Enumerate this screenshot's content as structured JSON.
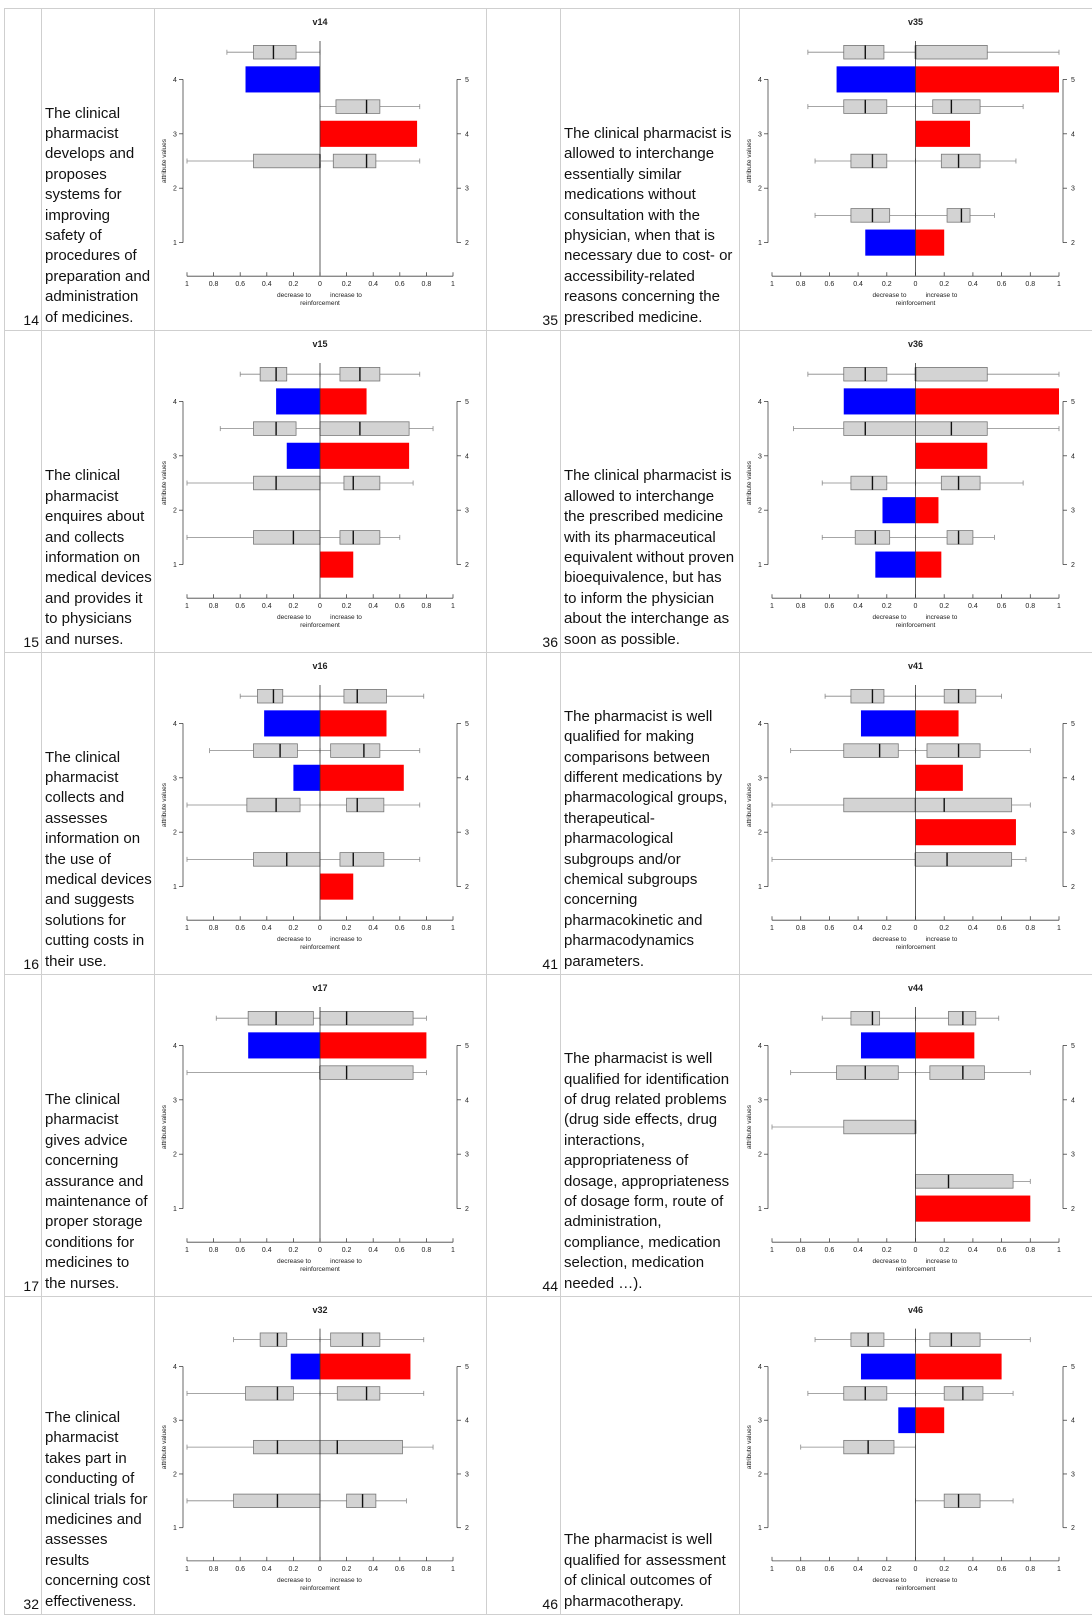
{
  "colors": {
    "decrease": "#0000ff",
    "increase": "#ff0000",
    "box": "#d3d3d3",
    "box_stroke": "#777777",
    "axis": "#444444"
  },
  "chart_labels": {
    "x_ticks": [
      "1",
      "0.8",
      "0.6",
      "0.4",
      "0.2",
      "0",
      "0.2",
      "0.4",
      "0.6",
      "0.8",
      "1"
    ],
    "left_ticks": [
      "1",
      "2",
      "3",
      "4"
    ],
    "right_ticks": [
      "2",
      "3",
      "4",
      "5"
    ],
    "ylabel": "attribute values",
    "xlabel_left": "decrease to",
    "xlabel_right": "increase to",
    "xlabel_bottom": "reinforcement"
  },
  "rows": [
    {
      "left": {
        "num": "14",
        "text": "The clinical pharmacist develops and proposes systems for improving safety of procedures of preparation and administration of medicines."
      },
      "right": {
        "num": "35",
        "text": "The clinical pharmacist is allowed to interchange essentially similar medications without consultation with the physician, when that is necessary due to cost- or accessibility-related reasons concerning the prescribed medicine."
      }
    },
    {
      "left": {
        "num": "15",
        "text": "The clinical pharmacist enquires about and collects information on medical devices and provides it to physicians and nurses."
      },
      "right": {
        "num": "36",
        "text": "The clinical pharmacist is allowed to interchange the prescribed medicine with its pharmaceutical equivalent without proven bioequivalence, but has to inform the physician about the interchange as soon as possible."
      }
    },
    {
      "left": {
        "num": "16",
        "text": "The clinical pharmacist collects and assesses information on the use of medical devices and suggests solutions for cutting costs in their use."
      },
      "right": {
        "num": "41",
        "text": "The pharmacist is well qualified for making comparisons between different medications by pharmacological groups, therapeutical-pharmacological subgroups and/or chemical subgroups concerning pharmacokinetic and pharmacodynamics parameters."
      }
    },
    {
      "left": {
        "num": "17",
        "text": "The clinical pharmacist gives advice concerning assurance and maintenance of proper storage conditions for medicines to the nurses."
      },
      "right": {
        "num": "44",
        "text": "The pharmacist is well qualified for identification of drug related problems (drug side effects, drug interactions, appropriateness of dosage, appropriateness of dosage form, route of administration, compliance, medication selection, medication needed …)."
      }
    },
    {
      "left": {
        "num": "32",
        "text": "The clinical pharmacist takes part in conducting of clinical trials for medicines and assesses results concerning cost effectiveness."
      },
      "right": {
        "num": "46",
        "text": "The pharmacist is well qualified for assessment of clinical outcomes of pharmacotherapy."
      }
    }
  ],
  "chart_data": [
    {
      "type": "bar",
      "title": "v14",
      "xlim": [
        -1,
        1
      ],
      "ylim": [
        1,
        4
      ],
      "y_right_ticks": [
        2,
        3,
        4,
        5
      ],
      "bars": [
        {
          "y": 4,
          "decrease": 0.56,
          "increase": 0
        },
        {
          "y": 3,
          "decrease": 0,
          "increase": 0.73
        }
      ],
      "boxplots": [
        {
          "y": 4.5,
          "whisker_low": -0.7,
          "q1": -0.5,
          "median": -0.35,
          "q3": -0.18,
          "whisker_high": 0
        },
        {
          "y": 3.5,
          "whisker_low": 0,
          "q1": 0.12,
          "median": 0.35,
          "q3": 0.45,
          "whisker_high": 0.75
        },
        {
          "y": 2.5,
          "whisker_low": -1.0,
          "q1": -0.5,
          "median": 0,
          "q3": 0,
          "whisker_high": 0
        },
        {
          "y": 2.5,
          "whisker_low": 0,
          "q1": 0.1,
          "median": 0.35,
          "q3": 0.42,
          "whisker_high": 0.75
        }
      ]
    },
    {
      "type": "bar",
      "title": "v35",
      "xlim": [
        -1,
        1
      ],
      "ylim": [
        1,
        4
      ],
      "y_right_ticks": [
        2,
        3,
        4,
        5
      ],
      "bars": [
        {
          "y": 4,
          "decrease": 0.55,
          "increase": 1.0
        },
        {
          "y": 3,
          "decrease": 0,
          "increase": 0.38
        },
        {
          "y": 1,
          "decrease": 0.35,
          "increase": 0.2
        }
      ],
      "boxplots": [
        {
          "y": 4.5,
          "whisker_low": -0.75,
          "q1": -0.5,
          "median": -0.35,
          "q3": -0.22,
          "whisker_high": 0
        },
        {
          "y": 4.5,
          "whisker_low": 0,
          "q1": 0,
          "median": 0,
          "q3": 0.5,
          "whisker_high": 1.0
        },
        {
          "y": 3.5,
          "whisker_low": -0.75,
          "q1": -0.5,
          "median": -0.35,
          "q3": -0.2,
          "whisker_high": 0
        },
        {
          "y": 3.5,
          "whisker_low": 0,
          "q1": 0.12,
          "median": 0.25,
          "q3": 0.45,
          "whisker_high": 0.75
        },
        {
          "y": 2.5,
          "whisker_low": -0.7,
          "q1": -0.45,
          "median": -0.3,
          "q3": -0.2,
          "whisker_high": 0
        },
        {
          "y": 2.5,
          "whisker_low": 0,
          "q1": 0.18,
          "median": 0.3,
          "q3": 0.45,
          "whisker_high": 0.7
        },
        {
          "y": 1.5,
          "whisker_low": -0.7,
          "q1": -0.45,
          "median": -0.3,
          "q3": -0.18,
          "whisker_high": 0
        },
        {
          "y": 1.5,
          "whisker_low": 0,
          "q1": 0.22,
          "median": 0.32,
          "q3": 0.38,
          "whisker_high": 0.55
        }
      ]
    },
    {
      "type": "bar",
      "title": "v15",
      "xlim": [
        -1,
        1
      ],
      "ylim": [
        1,
        4
      ],
      "y_right_ticks": [
        2,
        3,
        4,
        5
      ],
      "bars": [
        {
          "y": 4,
          "decrease": 0.33,
          "increase": 0.35
        },
        {
          "y": 3,
          "decrease": 0.25,
          "increase": 0.67
        },
        {
          "y": 1,
          "decrease": 0,
          "increase": 0.25
        }
      ],
      "boxplots": [
        {
          "y": 4.5,
          "whisker_low": -0.6,
          "q1": -0.45,
          "median": -0.33,
          "q3": -0.25,
          "whisker_high": 0
        },
        {
          "y": 4.5,
          "whisker_low": 0,
          "q1": 0.15,
          "median": 0.3,
          "q3": 0.45,
          "whisker_high": 0.75
        },
        {
          "y": 3.5,
          "whisker_low": -0.75,
          "q1": -0.5,
          "median": -0.33,
          "q3": -0.18,
          "whisker_high": 0
        },
        {
          "y": 3.5,
          "whisker_low": 0,
          "q1": 0,
          "median": 0.3,
          "q3": 0.67,
          "whisker_high": 0.85
        },
        {
          "y": 2.5,
          "whisker_low": -1.0,
          "q1": -0.5,
          "median": -0.33,
          "q3": 0,
          "whisker_high": 0
        },
        {
          "y": 2.5,
          "whisker_low": 0,
          "q1": 0.18,
          "median": 0.25,
          "q3": 0.45,
          "whisker_high": 0.7
        },
        {
          "y": 1.5,
          "whisker_low": -1.0,
          "q1": -0.5,
          "median": -0.2,
          "q3": 0,
          "whisker_high": 0
        },
        {
          "y": 1.5,
          "whisker_low": 0,
          "q1": 0.15,
          "median": 0.25,
          "q3": 0.45,
          "whisker_high": 0.6
        }
      ]
    },
    {
      "type": "bar",
      "title": "v36",
      "xlim": [
        -1,
        1
      ],
      "ylim": [
        1,
        4
      ],
      "y_right_ticks": [
        2,
        3,
        4,
        5
      ],
      "bars": [
        {
          "y": 4,
          "decrease": 0.5,
          "increase": 1.0
        },
        {
          "y": 3,
          "decrease": 0,
          "increase": 0.5
        },
        {
          "y": 2,
          "decrease": 0.23,
          "increase": 0.16
        },
        {
          "y": 1,
          "decrease": 0.28,
          "increase": 0.18
        }
      ],
      "boxplots": [
        {
          "y": 4.5,
          "whisker_low": -0.75,
          "q1": -0.5,
          "median": -0.35,
          "q3": -0.2,
          "whisker_high": 0
        },
        {
          "y": 4.5,
          "whisker_low": 0,
          "q1": 0,
          "median": 0,
          "q3": 0.5,
          "whisker_high": 1.0
        },
        {
          "y": 3.5,
          "whisker_low": -0.85,
          "q1": -0.5,
          "median": -0.35,
          "q3": 0,
          "whisker_high": 0
        },
        {
          "y": 3.5,
          "whisker_low": 0,
          "q1": 0,
          "median": 0.25,
          "q3": 0.5,
          "whisker_high": 1.0
        },
        {
          "y": 2.5,
          "whisker_low": -0.65,
          "q1": -0.45,
          "median": -0.3,
          "q3": -0.2,
          "whisker_high": 0
        },
        {
          "y": 2.5,
          "whisker_low": 0,
          "q1": 0.18,
          "median": 0.3,
          "q3": 0.45,
          "whisker_high": 0.75
        },
        {
          "y": 1.5,
          "whisker_low": -0.65,
          "q1": -0.42,
          "median": -0.28,
          "q3": -0.18,
          "whisker_high": 0
        },
        {
          "y": 1.5,
          "whisker_low": 0,
          "q1": 0.22,
          "median": 0.3,
          "q3": 0.4,
          "whisker_high": 0.55
        }
      ]
    },
    {
      "type": "bar",
      "title": "v16",
      "xlim": [
        -1,
        1
      ],
      "ylim": [
        1,
        4
      ],
      "y_right_ticks": [
        2,
        3,
        4,
        5
      ],
      "bars": [
        {
          "y": 4,
          "decrease": 0.42,
          "increase": 0.5
        },
        {
          "y": 3,
          "decrease": 0.2,
          "increase": 0.63
        },
        {
          "y": 1,
          "decrease": 0,
          "increase": 0.25
        }
      ],
      "boxplots": [
        {
          "y": 4.5,
          "whisker_low": -0.6,
          "q1": -0.47,
          "median": -0.35,
          "q3": -0.28,
          "whisker_high": 0
        },
        {
          "y": 4.5,
          "whisker_low": 0,
          "q1": 0.18,
          "median": 0.28,
          "q3": 0.5,
          "whisker_high": 0.78
        },
        {
          "y": 3.5,
          "whisker_low": -0.83,
          "q1": -0.5,
          "median": -0.3,
          "q3": -0.17,
          "whisker_high": 0
        },
        {
          "y": 3.5,
          "whisker_low": 0,
          "q1": 0.08,
          "median": 0.33,
          "q3": 0.45,
          "whisker_high": 0.75
        },
        {
          "y": 2.5,
          "whisker_low": -1.0,
          "q1": -0.55,
          "median": -0.33,
          "q3": -0.15,
          "whisker_high": 0
        },
        {
          "y": 2.5,
          "whisker_low": 0,
          "q1": 0.2,
          "median": 0.28,
          "q3": 0.48,
          "whisker_high": 0.75
        },
        {
          "y": 1.5,
          "whisker_low": -1.0,
          "q1": -0.5,
          "median": -0.25,
          "q3": 0,
          "whisker_high": 0
        },
        {
          "y": 1.5,
          "whisker_low": 0,
          "q1": 0.15,
          "median": 0.25,
          "q3": 0.48,
          "whisker_high": 0.75
        }
      ]
    },
    {
      "type": "bar",
      "title": "v41",
      "xlim": [
        -1,
        1
      ],
      "ylim": [
        1,
        4
      ],
      "y_right_ticks": [
        2,
        3,
        4,
        5
      ],
      "bars": [
        {
          "y": 4,
          "decrease": 0.38,
          "increase": 0.3
        },
        {
          "y": 3,
          "decrease": 0,
          "increase": 0.33
        },
        {
          "y": 2,
          "decrease": 0,
          "increase": 0.7
        }
      ],
      "boxplots": [
        {
          "y": 4.5,
          "whisker_low": -0.63,
          "q1": -0.45,
          "median": -0.3,
          "q3": -0.22,
          "whisker_high": 0
        },
        {
          "y": 4.5,
          "whisker_low": 0,
          "q1": 0.2,
          "median": 0.3,
          "q3": 0.42,
          "whisker_high": 0.6
        },
        {
          "y": 3.5,
          "whisker_low": -0.87,
          "q1": -0.5,
          "median": -0.25,
          "q3": -0.12,
          "whisker_high": 0
        },
        {
          "y": 3.5,
          "whisker_low": 0,
          "q1": 0.08,
          "median": 0.3,
          "q3": 0.45,
          "whisker_high": 0.8
        },
        {
          "y": 2.5,
          "whisker_low": -1.0,
          "q1": -0.5,
          "median": 0,
          "q3": 0,
          "whisker_high": 0
        },
        {
          "y": 2.5,
          "whisker_low": 0,
          "q1": 0,
          "median": 0.2,
          "q3": 0.67,
          "whisker_high": 0.8
        },
        {
          "y": 1.5,
          "whisker_low": -1.0,
          "q1": 0,
          "median": 0,
          "q3": 0,
          "whisker_high": 0
        },
        {
          "y": 1.5,
          "whisker_low": 0,
          "q1": 0,
          "median": 0.22,
          "q3": 0.67,
          "whisker_high": 0.77
        }
      ]
    },
    {
      "type": "bar",
      "title": "v17",
      "xlim": [
        -1,
        1
      ],
      "ylim": [
        1,
        4
      ],
      "y_right_ticks": [
        2,
        3,
        4,
        5
      ],
      "bars": [
        {
          "y": 4,
          "decrease": 0.54,
          "increase": 0.8
        }
      ],
      "boxplots": [
        {
          "y": 4.5,
          "whisker_low": -0.78,
          "q1": -0.54,
          "median": -0.33,
          "q3": -0.05,
          "whisker_high": 0
        },
        {
          "y": 4.5,
          "whisker_low": 0,
          "q1": 0,
          "median": 0.2,
          "q3": 0.7,
          "whisker_high": 0.8
        },
        {
          "y": 3.5,
          "whisker_low": -1.0,
          "q1": 0,
          "median": 0,
          "q3": 0,
          "whisker_high": 0
        },
        {
          "y": 3.5,
          "whisker_low": 0,
          "q1": 0,
          "median": 0.2,
          "q3": 0.7,
          "whisker_high": 0.8
        }
      ]
    },
    {
      "type": "bar",
      "title": "v44",
      "xlim": [
        -1,
        1
      ],
      "ylim": [
        1,
        4
      ],
      "y_right_ticks": [
        2,
        3,
        4,
        5
      ],
      "bars": [
        {
          "y": 4,
          "decrease": 0.38,
          "increase": 0.41
        },
        {
          "y": 1,
          "decrease": 0,
          "increase": 0.8
        }
      ],
      "boxplots": [
        {
          "y": 4.5,
          "whisker_low": -0.65,
          "q1": -0.45,
          "median": -0.3,
          "q3": -0.25,
          "whisker_high": 0
        },
        {
          "y": 4.5,
          "whisker_low": 0,
          "q1": 0.23,
          "median": 0.33,
          "q3": 0.42,
          "whisker_high": 0.58
        },
        {
          "y": 3.5,
          "whisker_low": -0.87,
          "q1": -0.55,
          "median": -0.35,
          "q3": -0.12,
          "whisker_high": 0
        },
        {
          "y": 3.5,
          "whisker_low": 0,
          "q1": 0.1,
          "median": 0.33,
          "q3": 0.48,
          "whisker_high": 0.8
        },
        {
          "y": 2.5,
          "whisker_low": -1.0,
          "q1": -0.5,
          "median": 0,
          "q3": 0,
          "whisker_high": 0
        },
        {
          "y": 1.5,
          "whisker_low": 0,
          "q1": 0,
          "median": 0.23,
          "q3": 0.68,
          "whisker_high": 0.8
        }
      ]
    },
    {
      "type": "bar",
      "title": "v32",
      "xlim": [
        -1,
        1
      ],
      "ylim": [
        1,
        4
      ],
      "y_right_ticks": [
        2,
        3,
        4,
        5
      ],
      "bars": [
        {
          "y": 4,
          "decrease": 0.22,
          "increase": 0.68
        }
      ],
      "boxplots": [
        {
          "y": 4.5,
          "whisker_low": -0.65,
          "q1": -0.45,
          "median": -0.32,
          "q3": -0.25,
          "whisker_high": 0
        },
        {
          "y": 4.5,
          "whisker_low": 0,
          "q1": 0.08,
          "median": 0.32,
          "q3": 0.45,
          "whisker_high": 0.78
        },
        {
          "y": 3.5,
          "whisker_low": -1.0,
          "q1": -0.56,
          "median": -0.32,
          "q3": -0.2,
          "whisker_high": 0
        },
        {
          "y": 3.5,
          "whisker_low": 0,
          "q1": 0.13,
          "median": 0.35,
          "q3": 0.45,
          "whisker_high": 0.78
        },
        {
          "y": 2.5,
          "whisker_low": -1.0,
          "q1": -0.5,
          "median": -0.32,
          "q3": 0,
          "whisker_high": 0
        },
        {
          "y": 2.5,
          "whisker_low": 0,
          "q1": 0,
          "median": 0.13,
          "q3": 0.62,
          "whisker_high": 0.85
        },
        {
          "y": 1.5,
          "whisker_low": -1.0,
          "q1": -0.65,
          "median": -0.32,
          "q3": 0,
          "whisker_high": 0
        },
        {
          "y": 1.5,
          "whisker_low": 0,
          "q1": 0.2,
          "median": 0.32,
          "q3": 0.42,
          "whisker_high": 0.65
        }
      ]
    },
    {
      "type": "bar",
      "title": "v46",
      "xlim": [
        -1,
        1
      ],
      "ylim": [
        1,
        4
      ],
      "y_right_ticks": [
        2,
        3,
        4,
        5
      ],
      "bars": [
        {
          "y": 4,
          "decrease": 0.38,
          "increase": 0.6
        },
        {
          "y": 3,
          "decrease": 0.12,
          "increase": 0.2
        }
      ],
      "boxplots": [
        {
          "y": 4.5,
          "whisker_low": -0.7,
          "q1": -0.45,
          "median": -0.33,
          "q3": -0.22,
          "whisker_high": 0
        },
        {
          "y": 4.5,
          "whisker_low": 0,
          "q1": 0.1,
          "median": 0.25,
          "q3": 0.45,
          "whisker_high": 0.8
        },
        {
          "y": 3.5,
          "whisker_low": -0.75,
          "q1": -0.5,
          "median": -0.35,
          "q3": -0.2,
          "whisker_high": 0
        },
        {
          "y": 3.5,
          "whisker_low": 0,
          "q1": 0.2,
          "median": 0.33,
          "q3": 0.47,
          "whisker_high": 0.68
        },
        {
          "y": 2.5,
          "whisker_low": -0.8,
          "q1": -0.5,
          "median": -0.33,
          "q3": -0.15,
          "whisker_high": 0
        },
        {
          "y": 1.5,
          "whisker_low": 0,
          "q1": 0.2,
          "median": 0.3,
          "q3": 0.45,
          "whisker_high": 0.68
        }
      ]
    }
  ]
}
